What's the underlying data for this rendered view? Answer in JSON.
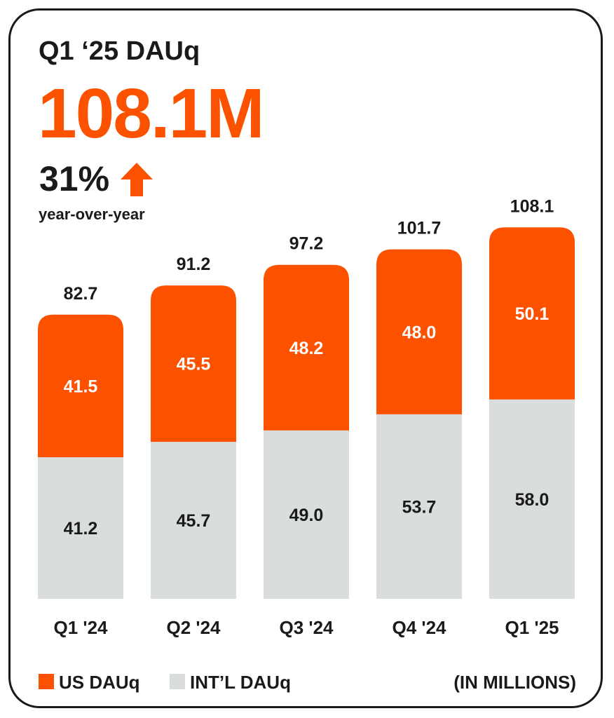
{
  "header": {
    "title": "Q1 ‘25 DAUq",
    "headline_value": "108.1M",
    "growth_value": "31%",
    "growth_icon": "arrow-up-icon",
    "growth_label": "year-over-year"
  },
  "colors": {
    "accent": "#fc5200",
    "intl": "#d9dddd",
    "text": "#1a1a1a"
  },
  "legend": {
    "us_label": "US DAUq",
    "intl_label": "INT’L DAUq",
    "units_label": "(IN MILLIONS)"
  },
  "chart_data": {
    "type": "bar",
    "stacked": true,
    "categories": [
      "Q1 '24",
      "Q2 '24",
      "Q3 '24",
      "Q4 '24",
      "Q1 '25"
    ],
    "series": [
      {
        "name": "INT’L DAUq",
        "values": [
          41.2,
          45.7,
          49.0,
          53.7,
          58.0
        ],
        "labels": [
          "41.2",
          "45.7",
          "49.0",
          "53.7",
          "58.0"
        ]
      },
      {
        "name": "US DAUq",
        "values": [
          41.5,
          45.5,
          48.2,
          48.0,
          50.1
        ],
        "labels": [
          "41.5",
          "45.5",
          "48.2",
          "48.0",
          "50.1"
        ]
      }
    ],
    "totals": [
      82.7,
      91.2,
      97.2,
      101.7,
      108.1
    ],
    "total_labels": [
      "82.7",
      "91.2",
      "97.2",
      "101.7",
      "108.1"
    ],
    "grid": false,
    "legend_position": "bottom-left"
  }
}
